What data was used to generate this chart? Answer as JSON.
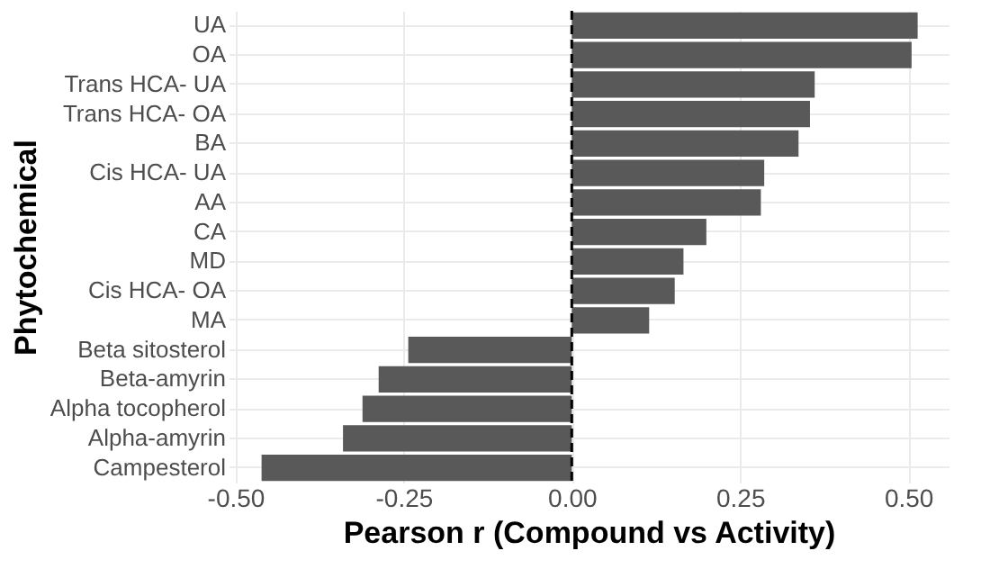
{
  "chart_data": {
    "type": "bar",
    "orientation": "horizontal",
    "xlabel": "Pearson r (Compound vs Activity)",
    "ylabel": "Phytochemical",
    "categories": [
      "UA",
      "OA",
      "Trans HCA- UA",
      "Trans HCA- OA",
      "BA",
      "Cis HCA- UA",
      "AA",
      "CA",
      "MD",
      "Cis HCA- OA",
      "MA",
      "Beta sitosterol",
      "Beta-amyrin",
      "Alpha tocopherol",
      "Alpha-amyrin",
      "Campesterol"
    ],
    "values": [
      0.514,
      0.505,
      0.361,
      0.354,
      0.337,
      0.286,
      0.281,
      0.2,
      0.166,
      0.153,
      0.115,
      -0.243,
      -0.287,
      -0.311,
      -0.34,
      -0.461
    ],
    "color": "#595959",
    "xlim": [
      -0.51,
      0.56
    ],
    "xticks": [
      {
        "value": -0.5,
        "label": "-0.50"
      },
      {
        "value": -0.25,
        "label": "-0.25"
      },
      {
        "value": 0,
        "label": "0.00"
      },
      {
        "value": 0.25,
        "label": "0.25"
      },
      {
        "value": 0.5,
        "label": "0.50"
      }
    ],
    "ref_lines": [
      {
        "axis": "x",
        "value": 0,
        "color": "#000000",
        "line_style": "dashed"
      }
    ],
    "grid": true
  }
}
